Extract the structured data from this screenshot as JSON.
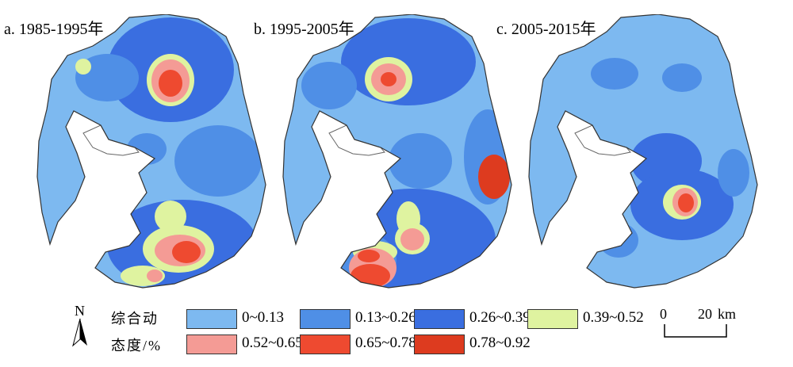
{
  "panels": [
    {
      "label": "a. 1985-1995年"
    },
    {
      "label": "b. 1995-2005年"
    },
    {
      "label": "c. 2005-2015年"
    }
  ],
  "legend": {
    "title_line1": "综合动",
    "title_line2": "态度/%",
    "classes": [
      {
        "range": "0~0.13",
        "color": "#7db9f0"
      },
      {
        "range": "0.13~0.26",
        "color": "#4f8fe6"
      },
      {
        "range": "0.26~0.39",
        "color": "#3a6ee0"
      },
      {
        "range": "0.39~0.52",
        "color": "#dff3a0"
      },
      {
        "range": "0.52~0.65",
        "color": "#f49b95"
      },
      {
        "range": "0.65~0.78",
        "color": "#ee4a30"
      },
      {
        "range": "0.78~0.92",
        "color": "#dd3b1f"
      }
    ]
  },
  "north_arrow": {
    "label": "N"
  },
  "scale_bar": {
    "start": "0",
    "end": "20",
    "unit": "km"
  }
}
